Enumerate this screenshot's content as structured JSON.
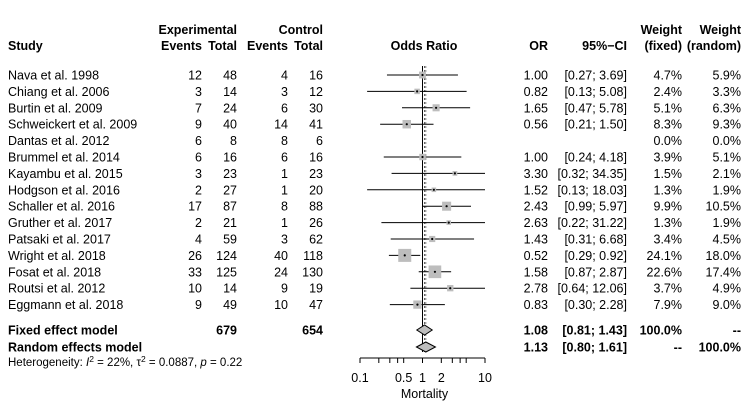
{
  "chart_data": {
    "type": "forest",
    "columns": {
      "study": "Study",
      "experimental": "Experimental",
      "control": "Control",
      "events": "Events",
      "total": "Total",
      "plot": "Odds Ratio",
      "or": "OR",
      "ci": "95%−CI",
      "weight": "Weight",
      "weight_fixed": "(fixed)",
      "weight_random": "(random)"
    },
    "studies": [
      {
        "study": "Nava et al. 1998",
        "e_events": "12",
        "e_total": "48",
        "c_events": "4",
        "c_total": "16",
        "or": 1.0,
        "lo": 0.27,
        "hi": 3.69,
        "or_text": "1.00",
        "ci_text": "[0.27;  3.69]",
        "w_fixed": "4.7%",
        "w_random": "5.9%"
      },
      {
        "study": "Chiang et al. 2006",
        "e_events": "3",
        "e_total": "14",
        "c_events": "3",
        "c_total": "12",
        "or": 0.82,
        "lo": 0.13,
        "hi": 5.08,
        "or_text": "0.82",
        "ci_text": "[0.13;  5.08]",
        "w_fixed": "2.4%",
        "w_random": "3.3%"
      },
      {
        "study": "Burtin et al. 2009",
        "e_events": "7",
        "e_total": "24",
        "c_events": "6",
        "c_total": "30",
        "or": 1.65,
        "lo": 0.47,
        "hi": 5.78,
        "or_text": "1.65",
        "ci_text": "[0.47;  5.78]",
        "w_fixed": "5.1%",
        "w_random": "6.3%"
      },
      {
        "study": "Schweickert et al. 2009",
        "e_events": "9",
        "e_total": "40",
        "c_events": "14",
        "c_total": "41",
        "or": 0.56,
        "lo": 0.21,
        "hi": 1.5,
        "or_text": "0.56",
        "ci_text": "[0.21;  1.50]",
        "w_fixed": "8.3%",
        "w_random": "9.3%"
      },
      {
        "study": "Dantas et al. 2012",
        "e_events": "6",
        "e_total": "8",
        "c_events": "8",
        "c_total": "6",
        "or": null,
        "lo": null,
        "hi": null,
        "or_text": "",
        "ci_text": "",
        "w_fixed": "0.0%",
        "w_random": "0.0%"
      },
      {
        "study": "Brummel et al. 2014",
        "e_events": "6",
        "e_total": "16",
        "c_events": "6",
        "c_total": "16",
        "or": 1.0,
        "lo": 0.24,
        "hi": 4.18,
        "or_text": "1.00",
        "ci_text": "[0.24;  4.18]",
        "w_fixed": "3.9%",
        "w_random": "5.1%"
      },
      {
        "study": "Kayambu et al. 2015",
        "e_events": "3",
        "e_total": "23",
        "c_events": "1",
        "c_total": "23",
        "or": 3.3,
        "lo": 0.32,
        "hi": 34.35,
        "or_text": "3.30",
        "ci_text": "[0.32; 34.35]",
        "w_fixed": "1.5%",
        "w_random": "2.1%"
      },
      {
        "study": "Hodgson et al. 2016",
        "e_events": "2",
        "e_total": "27",
        "c_events": "1",
        "c_total": "20",
        "or": 1.52,
        "lo": 0.13,
        "hi": 18.03,
        "or_text": "1.52",
        "ci_text": "[0.13; 18.03]",
        "w_fixed": "1.3%",
        "w_random": "1.9%"
      },
      {
        "study": "Schaller et al. 2016",
        "e_events": "17",
        "e_total": "87",
        "c_events": "8",
        "c_total": "88",
        "or": 2.43,
        "lo": 0.99,
        "hi": 5.97,
        "or_text": "2.43",
        "ci_text": "[0.99;  5.97]",
        "w_fixed": "9.9%",
        "w_random": "10.5%"
      },
      {
        "study": "Gruther et al. 2017",
        "e_events": "2",
        "e_total": "21",
        "c_events": "1",
        "c_total": "26",
        "or": 2.63,
        "lo": 0.22,
        "hi": 31.22,
        "or_text": "2.63",
        "ci_text": "[0.22; 31.22]",
        "w_fixed": "1.3%",
        "w_random": "1.9%"
      },
      {
        "study": "Patsaki et al. 2017",
        "e_events": "4",
        "e_total": "59",
        "c_events": "3",
        "c_total": "62",
        "or": 1.43,
        "lo": 0.31,
        "hi": 6.68,
        "or_text": "1.43",
        "ci_text": "[0.31;  6.68]",
        "w_fixed": "3.4%",
        "w_random": "4.5%"
      },
      {
        "study": "Wright et al. 2018",
        "e_events": "26",
        "e_total": "124",
        "c_events": "40",
        "c_total": "118",
        "or": 0.52,
        "lo": 0.29,
        "hi": 0.92,
        "or_text": "0.52",
        "ci_text": "[0.29;  0.92]",
        "w_fixed": "24.1%",
        "w_random": "18.0%"
      },
      {
        "study": "Fosat et al. 2018",
        "e_events": "33",
        "e_total": "125",
        "c_events": "24",
        "c_total": "130",
        "or": 1.58,
        "lo": 0.87,
        "hi": 2.87,
        "or_text": "1.58",
        "ci_text": "[0.87;  2.87]",
        "w_fixed": "22.6%",
        "w_random": "17.4%"
      },
      {
        "study": "Routsi et al. 2012",
        "e_events": "10",
        "e_total": "14",
        "c_events": "9",
        "c_total": "19",
        "or": 2.78,
        "lo": 0.64,
        "hi": 12.06,
        "or_text": "2.78",
        "ci_text": "[0.64; 12.06]",
        "w_fixed": "3.7%",
        "w_random": "4.9%"
      },
      {
        "study": "Eggmann et al. 2018",
        "e_events": "9",
        "e_total": "49",
        "c_events": "10",
        "c_total": "47",
        "or": 0.83,
        "lo": 0.3,
        "hi": 2.28,
        "or_text": "0.83",
        "ci_text": "[0.30;  2.28]",
        "w_fixed": "7.9%",
        "w_random": "9.0%"
      }
    ],
    "pooled": [
      {
        "label": "Fixed effect model",
        "e_total": "679",
        "c_total": "654",
        "or": 1.08,
        "lo": 0.81,
        "hi": 1.43,
        "or_text": "1.08",
        "ci_text": "[0.81;  1.43]",
        "w_fixed": "100.0%",
        "w_random": "--"
      },
      {
        "label": "Random effects model",
        "e_total": "",
        "c_total": "",
        "or": 1.13,
        "lo": 0.8,
        "hi": 1.61,
        "or_text": "1.13",
        "ci_text": "[0.80;  1.61]",
        "w_fixed": "--",
        "w_random": "100.0%"
      }
    ],
    "heterogeneity": {
      "prefix": "Heterogeneity: ",
      "i2": "22%",
      "tau2": "0.0887",
      "p": "0.22"
    },
    "x_axis": {
      "scale": "log",
      "label": "Mortality",
      "ticks": [
        0.1,
        0.5,
        1,
        2,
        10
      ],
      "tick_labels": [
        "0.1",
        "0.5",
        "1",
        "2",
        "10"
      ],
      "range": [
        0.1,
        10
      ]
    }
  }
}
